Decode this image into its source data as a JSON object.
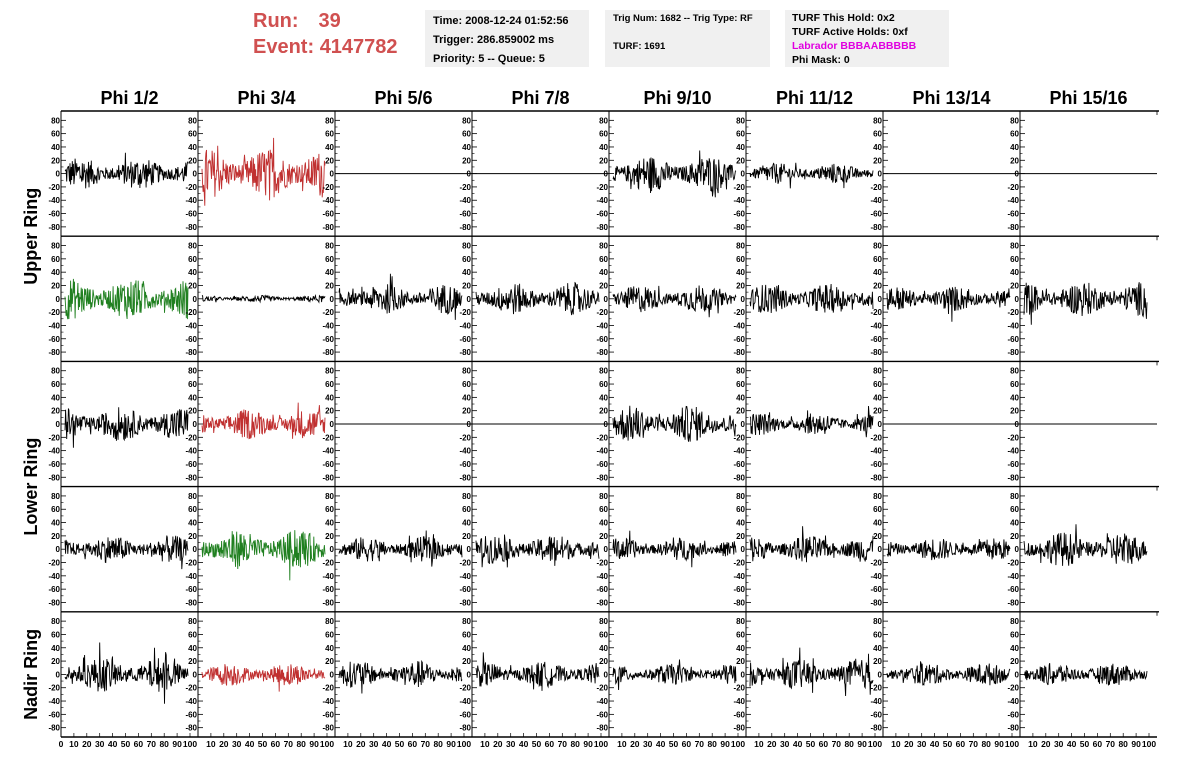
{
  "header": {
    "run_label": "Run:",
    "run_value": "39",
    "event_label": "Event:",
    "event_value": "4147782"
  },
  "info_time": {
    "time": "Time: 2008-12-24 01:52:56",
    "trigger": "Trigger: 286.859002 ms",
    "priority": "Priority: 5 -- Queue: 5"
  },
  "info_trig": {
    "trig": "Trig Num: 1682 -- Trig Type: RF",
    "turf": "TURF: 1691"
  },
  "info_turf": {
    "hold": "TURF This Hold: 0x2",
    "active": "TURF Active Holds: 0xf",
    "labrador": "Labrador BBBAABBBBB",
    "phimask": "Phi Mask: 0"
  },
  "colors": {
    "run_text": "#d05050",
    "labrador_text": "#e000e0",
    "trace_black": "#000000",
    "trace_red": "#c03030",
    "trace_green": "#208020",
    "info_bg": "#f0f0f0"
  },
  "chart_data": {
    "type": "line",
    "description_of_grid": "5 rows x 8 columns of waveform panels",
    "columns": [
      "Phi 1/2",
      "Phi 3/4",
      "Phi 5/6",
      "Phi 7/8",
      "Phi 9/10",
      "Phi 11/12",
      "Phi 13/14",
      "Phi 15/16"
    ],
    "ring_labels": [
      "Upper Ring",
      "Lower Ring",
      "Nadir Ring"
    ],
    "ylim": [
      -85,
      85
    ],
    "yticks": [
      80,
      60,
      40,
      20,
      0,
      -20,
      -40,
      -60,
      -80
    ],
    "xlim": [
      0,
      100
    ],
    "xtick_labels": [
      "0",
      "10",
      "20",
      "30",
      "40",
      "50",
      "60",
      "70",
      "80",
      "90",
      "100"
    ],
    "panels": [
      [
        {
          "c": "black",
          "a": 14,
          "f": 0
        },
        {
          "c": "red",
          "a": 22,
          "f": 0
        },
        {
          "c": "black",
          "a": 0,
          "f": 1
        },
        {
          "c": "black",
          "a": 0,
          "f": 1
        },
        {
          "c": "black",
          "a": 16,
          "f": 0
        },
        {
          "c": "black",
          "a": 9,
          "f": 0
        },
        {
          "c": "black",
          "a": 0,
          "f": 1
        },
        {
          "c": "black",
          "a": 0,
          "f": 1
        }
      ],
      [
        {
          "c": "green",
          "a": 18,
          "f": 0
        },
        {
          "c": "black",
          "a": 3,
          "f": 0
        },
        {
          "c": "black",
          "a": 13,
          "f": 0
        },
        {
          "c": "black",
          "a": 14,
          "f": 0
        },
        {
          "c": "black",
          "a": 12,
          "f": 0
        },
        {
          "c": "black",
          "a": 13,
          "f": 0
        },
        {
          "c": "black",
          "a": 11,
          "f": 0
        },
        {
          "c": "black",
          "a": 15,
          "f": 0
        }
      ],
      [
        {
          "c": "black",
          "a": 15,
          "f": 0
        },
        {
          "c": "red",
          "a": 13,
          "f": 0
        },
        {
          "c": "black",
          "a": 0,
          "f": 1
        },
        {
          "c": "black",
          "a": 0,
          "f": 1
        },
        {
          "c": "black",
          "a": 16,
          "f": 0
        },
        {
          "c": "black",
          "a": 10,
          "f": 0
        },
        {
          "c": "black",
          "a": 0,
          "f": 1
        },
        {
          "c": "black",
          "a": 0,
          "f": 1
        }
      ],
      [
        {
          "c": "black",
          "a": 12,
          "f": 0
        },
        {
          "c": "green",
          "a": 17,
          "f": 0
        },
        {
          "c": "black",
          "a": 11,
          "f": 0
        },
        {
          "c": "black",
          "a": 13,
          "f": 0
        },
        {
          "c": "black",
          "a": 10,
          "f": 0
        },
        {
          "c": "black",
          "a": 12,
          "f": 0
        },
        {
          "c": "black",
          "a": 10,
          "f": 0
        },
        {
          "c": "black",
          "a": 15,
          "f": 0
        }
      ],
      [
        {
          "c": "black",
          "a": 15,
          "f": 0
        },
        {
          "c": "red",
          "a": 10,
          "f": 0
        },
        {
          "c": "black",
          "a": 12,
          "f": 0
        },
        {
          "c": "black",
          "a": 11,
          "f": 0
        },
        {
          "c": "black",
          "a": 9,
          "f": 0
        },
        {
          "c": "black",
          "a": 13,
          "f": 0
        },
        {
          "c": "black",
          "a": 10,
          "f": 0
        },
        {
          "c": "black",
          "a": 10,
          "f": 0
        }
      ]
    ]
  }
}
